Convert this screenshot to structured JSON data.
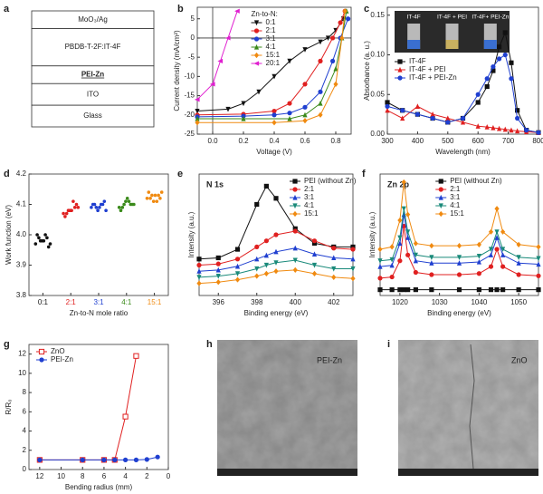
{
  "panel_labels": [
    "a",
    "b",
    "c",
    "d",
    "e",
    "f",
    "g",
    "h",
    "i"
  ],
  "device_stack": [
    "MoO₃/Ag",
    "PBDB-T-2F:IT-4F",
    "PEI-Zn",
    "ITO",
    "Glass"
  ],
  "sem_images": [
    {
      "label": "PEI-Zn"
    },
    {
      "label": "ZnO"
    }
  ],
  "chart_data": [
    {
      "type": "line",
      "x_label": "Voltage (V)",
      "y_label": "Current density (mA/cm²)",
      "xlim": [
        -0.1,
        0.9
      ],
      "xticks": [
        {
          "value": 0,
          "label": "0.0"
        },
        0.2,
        0.4,
        0.6,
        0.8
      ],
      "ylim": [
        -25,
        8
      ],
      "yticks": [
        -25,
        -20,
        -15,
        -10,
        -5,
        0,
        5
      ],
      "zero_lines": true,
      "legend_title": "Zn-to-N:",
      "legend": "top-center",
      "series": [
        {
          "name": "0:1",
          "color": "#111111",
          "marker": "triangle-down",
          "x": [
            -0.1,
            0.1,
            0.2,
            0.3,
            0.4,
            0.5,
            0.6,
            0.7,
            0.75,
            0.8,
            0.85
          ],
          "values": [
            -19,
            -18.5,
            -17,
            -14,
            -10,
            -6,
            -3,
            -1,
            0,
            2,
            5
          ]
        },
        {
          "name": "2:1",
          "color": "#e02020",
          "marker": "circle",
          "x": [
            -0.1,
            0.2,
            0.4,
            0.5,
            0.6,
            0.7,
            0.78,
            0.83,
            0.86
          ],
          "values": [
            -20,
            -19.8,
            -19,
            -17,
            -12,
            -6,
            0,
            4,
            7
          ]
        },
        {
          "name": "3:1",
          "color": "#1f3fd0",
          "marker": "circle",
          "x": [
            -0.1,
            0.2,
            0.4,
            0.5,
            0.6,
            0.7,
            0.78,
            0.83,
            0.88
          ],
          "values": [
            -20.5,
            -20.3,
            -20,
            -19.5,
            -18,
            -14,
            -6,
            0,
            5
          ]
        },
        {
          "name": "4:1",
          "color": "#3a8a1a",
          "marker": "triangle-up",
          "x": [
            -0.1,
            0.2,
            0.5,
            0.6,
            0.7,
            0.8,
            0.84,
            0.87
          ],
          "values": [
            -21,
            -21,
            -21,
            -20,
            -17,
            -8,
            0,
            7
          ]
        },
        {
          "name": "15:1",
          "color": "#f08a10",
          "marker": "diamond",
          "x": [
            -0.1,
            0.4,
            0.6,
            0.7,
            0.8,
            0.84,
            0.86
          ],
          "values": [
            -22,
            -22,
            -21.5,
            -20,
            -12,
            0,
            7
          ]
        },
        {
          "name": "20:1",
          "color": "#e020d0",
          "marker": "triangle-left",
          "x": [
            -0.1,
            0,
            0.05,
            0.1,
            0.16
          ],
          "values": [
            -16,
            -12,
            -6,
            0,
            7
          ]
        }
      ]
    },
    {
      "type": "line",
      "x_label": "Wavelength (nm)",
      "y_label": "Absorbance (a. u.)",
      "xlim": [
        300,
        800
      ],
      "xticks": [
        300,
        400,
        500,
        600,
        700,
        800
      ],
      "ylim": [
        0,
        0.16
      ],
      "yticks": [
        {
          "value": 0,
          "label": "0.00"
        },
        0.05,
        {
          "value": 0.1,
          "label": "0.10"
        },
        0.15
      ],
      "legend": "bottom-left",
      "inset_labels": [
        "IT-4F",
        "IT-4F + PEI",
        "IT-4F+ PEI-Zn"
      ],
      "x": [
        300,
        350,
        400,
        450,
        500,
        550,
        600,
        630,
        650,
        670,
        690,
        710,
        730,
        760,
        800
      ],
      "series": [
        {
          "name": "IT-4F",
          "color": "#111111",
          "marker": "square",
          "values": [
            0.04,
            0.03,
            0.025,
            0.02,
            0.015,
            0.02,
            0.04,
            0.06,
            0.08,
            0.11,
            0.128,
            0.09,
            0.03,
            0.005,
            0.002
          ]
        },
        {
          "name": "IT-4F + PEI",
          "color": "#e02020",
          "marker": "triangle-up",
          "values": [
            0.03,
            0.02,
            0.035,
            0.025,
            0.02,
            0.015,
            0.01,
            0.009,
            0.008,
            0.007,
            0.006,
            0.005,
            0.004,
            0.003,
            0.002
          ]
        },
        {
          "name": "IT-4F + PEI-Zn",
          "color": "#1f3fd0",
          "marker": "circle",
          "values": [
            0.035,
            0.03,
            0.025,
            0.02,
            0.015,
            0.02,
            0.05,
            0.07,
            0.085,
            0.095,
            0.1,
            0.07,
            0.02,
            0.005,
            0.002
          ]
        }
      ]
    },
    {
      "type": "strip",
      "x_label": "Zn-to-N mole ratio",
      "y_label": "Work function (eV)",
      "categories": [
        "0:1",
        "2:1",
        "3:1",
        "4:1",
        "15:1"
      ],
      "category_colors": [
        "#111111",
        "#e02020",
        "#1f3fd0",
        "#3a8a1a",
        "#f08a10"
      ],
      "ylim": [
        3.8,
        4.2
      ],
      "yticks": [
        3.8,
        3.9,
        {
          "value": 4,
          "label": "4.0"
        },
        4.1,
        4.2
      ],
      "groups": [
        [
          3.97,
          3.99,
          3.98,
          4.0,
          3.96,
          3.98,
          3.99,
          3.97,
          4.0,
          3.98
        ],
        [
          4.07,
          4.09,
          4.08,
          4.06,
          4.1,
          4.08,
          4.07,
          4.09,
          4.11,
          4.08
        ],
        [
          4.09,
          4.1,
          4.08,
          4.1,
          4.11,
          4.09,
          4.1,
          4.08,
          4.1,
          4.09
        ],
        [
          4.09,
          4.1,
          4.11,
          4.08,
          4.1,
          4.12,
          4.09,
          4.1,
          4.11,
          4.1
        ],
        [
          4.12,
          4.13,
          4.11,
          4.14,
          4.12,
          4.13,
          4.12,
          4.14,
          4.11,
          4.13
        ]
      ]
    },
    {
      "type": "line",
      "title": "N 1s",
      "x_label": "Binding energy (eV)",
      "y_label": "Intensity (a.u.)",
      "xlim": [
        395,
        403
      ],
      "xticks": [
        396,
        398,
        400,
        402
      ],
      "ylim": [
        0,
        10
      ],
      "legend": "top-right",
      "x": [
        395,
        396,
        397,
        398,
        398.5,
        399,
        400,
        401,
        402,
        403
      ],
      "series": [
        {
          "name": "PEI (without Zn)",
          "color": "#111111",
          "marker": "square",
          "values": [
            3,
            3.1,
            3.8,
            7.5,
            9,
            8,
            5.5,
            4.3,
            4,
            4
          ]
        },
        {
          "name": "2:1",
          "color": "#e02020",
          "marker": "circle",
          "values": [
            2.5,
            2.6,
            3,
            4,
            4.5,
            5,
            5.3,
            4.5,
            3.9,
            3.8
          ]
        },
        {
          "name": "3:1",
          "color": "#1f3fd0",
          "marker": "triangle-up",
          "values": [
            2,
            2.1,
            2.4,
            3,
            3.3,
            3.6,
            3.9,
            3.4,
            3.1,
            3
          ]
        },
        {
          "name": "4:1",
          "color": "#1a8a7a",
          "marker": "triangle-down",
          "values": [
            1.5,
            1.6,
            1.8,
            2.2,
            2.5,
            2.7,
            2.9,
            2.5,
            2.2,
            2.2
          ]
        },
        {
          "name": "15:1",
          "color": "#f08a10",
          "marker": "diamond",
          "values": [
            1,
            1.1,
            1.3,
            1.6,
            1.8,
            2,
            2.1,
            1.8,
            1.5,
            1.4
          ]
        }
      ]
    },
    {
      "type": "line",
      "title": "Zn 2p",
      "x_label": "Binding energy (eV)",
      "y_label": "Intensity (a.u.)",
      "xlim": [
        1015,
        1055
      ],
      "xticks": [
        1020,
        1030,
        1040,
        1050
      ],
      "ylim": [
        0,
        10.5
      ],
      "legend": "top-center",
      "x": [
        1015,
        1018,
        1020,
        1021,
        1022,
        1024,
        1028,
        1035,
        1040,
        1043,
        1044.5,
        1046,
        1050,
        1055
      ],
      "series": [
        {
          "name": "PEI (without Zn)",
          "color": "#111111",
          "marker": "square",
          "values": [
            0.5,
            0.5,
            0.5,
            0.5,
            0.5,
            0.5,
            0.5,
            0.5,
            0.5,
            0.5,
            0.5,
            0.5,
            0.5,
            0.5
          ]
        },
        {
          "name": "2:1",
          "color": "#e02020",
          "marker": "circle",
          "values": [
            1.5,
            1.6,
            3,
            6,
            3.5,
            2,
            1.8,
            1.8,
            1.9,
            2.5,
            4,
            2.5,
            1.8,
            1.7
          ]
        },
        {
          "name": "3:1",
          "color": "#1f3fd0",
          "marker": "triangle-up",
          "values": [
            2.5,
            2.6,
            4.5,
            7,
            5,
            3,
            2.8,
            2.8,
            2.9,
            3.5,
            5,
            3.5,
            2.8,
            2.7
          ]
        },
        {
          "name": "4:1",
          "color": "#1a8a7a",
          "marker": "triangle-down",
          "values": [
            3,
            3.1,
            5,
            7.5,
            5.5,
            3.5,
            3.3,
            3.3,
            3.4,
            4,
            5.5,
            4,
            3.3,
            3.2
          ]
        },
        {
          "name": "15:1",
          "color": "#f08a10",
          "marker": "diamond",
          "values": [
            4,
            4.2,
            6.5,
            9.8,
            7,
            4.5,
            4.3,
            4.3,
            4.4,
            5.5,
            7.5,
            5.5,
            4.4,
            4.2
          ]
        }
      ]
    },
    {
      "type": "line",
      "x_label": "Bending radius (mm)",
      "y_label": "R/R₀",
      "xlim": [
        13,
        0
      ],
      "xticks": [
        12,
        10,
        8,
        6,
        4,
        2,
        0
      ],
      "ylim": [
        0,
        13
      ],
      "yticks": [
        0,
        2,
        4,
        6,
        8,
        10,
        12
      ],
      "legend": "top-left",
      "series": [
        {
          "name": "ZnO",
          "color": "#e02020",
          "marker": "square-open",
          "x": [
            12,
            8,
            6,
            5,
            4,
            3
          ],
          "values": [
            1,
            1,
            1,
            1,
            5.5,
            11.8
          ]
        },
        {
          "name": "PEI-Zn",
          "color": "#1f3fd0",
          "marker": "circle",
          "x": [
            12,
            8,
            6,
            5,
            4,
            3,
            2,
            1
          ],
          "values": [
            1,
            1,
            1,
            1,
            1,
            1,
            1.05,
            1.3
          ]
        }
      ]
    }
  ]
}
